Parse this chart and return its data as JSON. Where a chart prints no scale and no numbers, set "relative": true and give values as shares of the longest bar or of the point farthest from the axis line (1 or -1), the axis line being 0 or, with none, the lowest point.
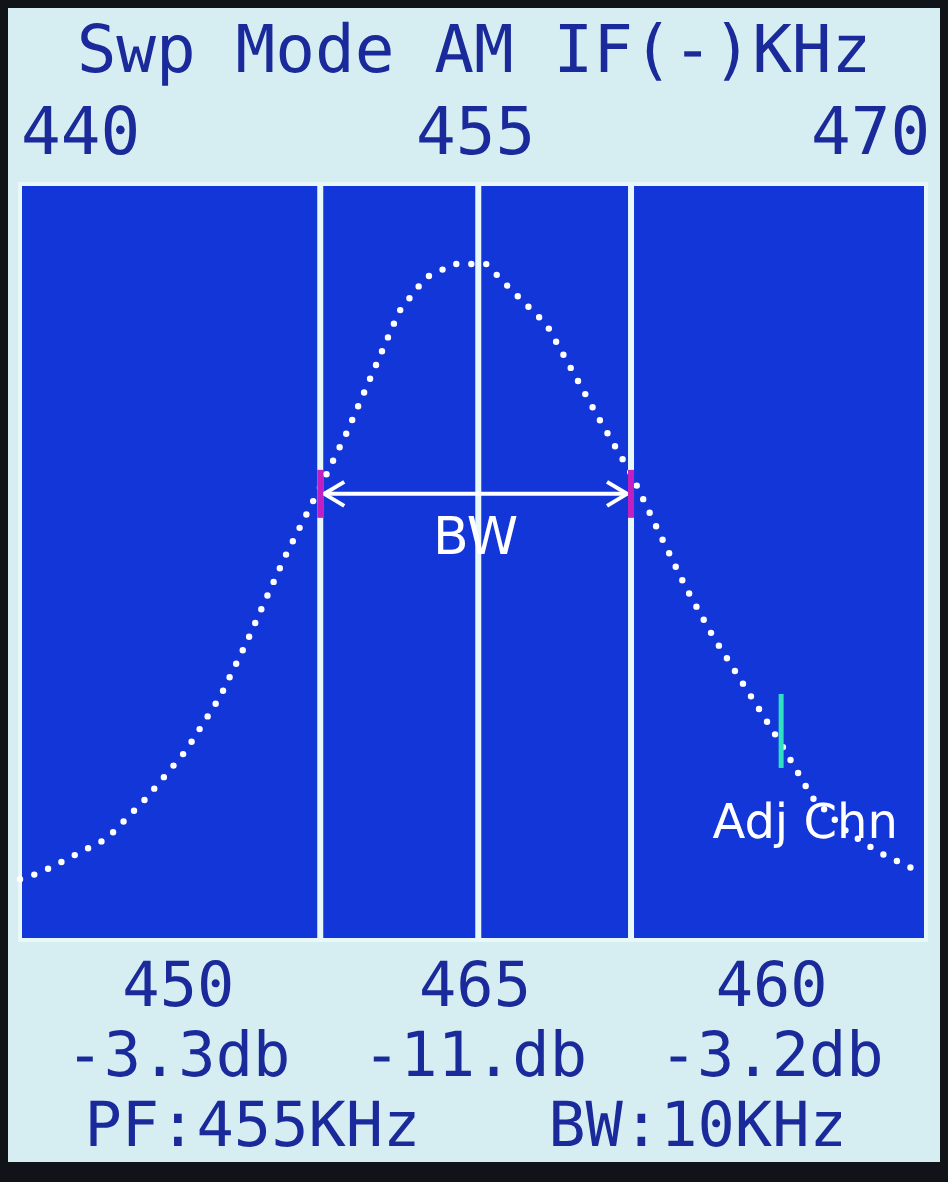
{
  "chart_data": {
    "type": "line",
    "title": "Swp Mode AM IF(-)KHz",
    "relative": true,
    "xlim": [
      437.7,
      472.1
    ],
    "xticks": [
      440,
      455,
      470
    ],
    "line_style": "dotted",
    "x": [
      437.7,
      438.5,
      439.5,
      441.0,
      442.5,
      444.0,
      445.3,
      446.3,
      447.1,
      447.8,
      449.1,
      450.1,
      451.1,
      452.1,
      453.1,
      454.2,
      455.4,
      456.4,
      457.7,
      458.7,
      459.7,
      460.9,
      462.0,
      463.0,
      464.0,
      465.3,
      466.6,
      467.8,
      469.1,
      470.3,
      471.9
    ],
    "series": [
      {
        "color": "#ffffff",
        "values": [
          0.09,
          0.1,
          0.12,
          0.15,
          0.21,
          0.28,
          0.36,
          0.44,
          0.51,
          0.57,
          0.67,
          0.75,
          0.84,
          0.93,
          0.98,
          1.0,
          1.0,
          0.96,
          0.91,
          0.84,
          0.77,
          0.69,
          0.6,
          0.52,
          0.45,
          0.37,
          0.29,
          0.21,
          0.16,
          0.13,
          0.1
        ]
      }
    ],
    "ref_lines": [
      {
        "axis": "x",
        "value": 449.1,
        "color": "#e8f8f8"
      },
      {
        "axis": "x",
        "value": 455.1,
        "color": "#e8f8f8"
      },
      {
        "axis": "x",
        "value": 460.9,
        "color": "#e8f8f8"
      }
    ],
    "annotations": [
      {
        "text": "BW",
        "x": 455,
        "y": 0.66
      },
      {
        "text": "Adj Chn",
        "x": 466.6,
        "y": 0.29
      },
      "450 465 460",
      "-3.3db -11.db -3.2db",
      "PF:455KHz BW:10KHz"
    ]
  }
}
